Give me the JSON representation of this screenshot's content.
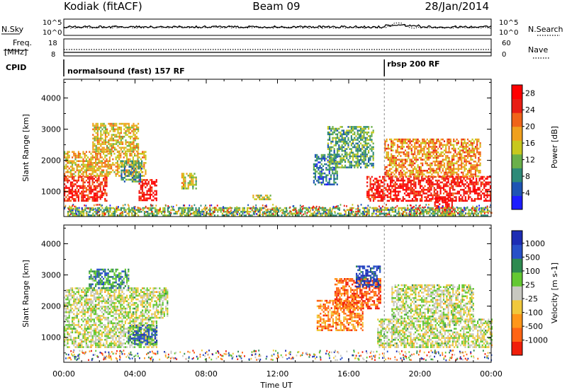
{
  "header": {
    "station": "Kodiak (fitACF)",
    "beam": "Beam 09",
    "date": "28/Jan/2014"
  },
  "top_panels": {
    "nsky_label": "N.Sky",
    "nsearch_label": "N.Search",
    "freq_label_1": "Freq.",
    "freq_label_2": "[MHz]",
    "nave_label": "Nave",
    "cpid_label": "CPID",
    "noise_left_ticks": [
      "10^5",
      "10^0"
    ],
    "noise_right_ticks": [
      "10^5",
      "10^0"
    ],
    "freq_left_ticks": [
      "18",
      "8"
    ],
    "freq_right_ticks": [
      "60",
      "0"
    ],
    "cpid_segments": [
      {
        "label": "normalsound (fast) 157 RF",
        "start_hour": 0
      },
      {
        "label": "rbsp 200 RF",
        "start_hour": 18
      }
    ]
  },
  "chart_data": [
    {
      "type": "heatmap",
      "name": "Power",
      "ylabel": "Slant Range [km]",
      "yticks": [
        "1000",
        "2000",
        "3000",
        "4000"
      ],
      "ylim": [
        200,
        4600
      ],
      "xlim": [
        0,
        24
      ],
      "colorbar": {
        "label": "Power [dB]",
        "ticks": [
          "4",
          "8",
          "12",
          "16",
          "20",
          "24",
          "28"
        ],
        "range": [
          0,
          30
        ],
        "colors": [
          "#1d1dff",
          "#1e54b4",
          "#2e8a78",
          "#6ab04a",
          "#c8c81e",
          "#f0a01e",
          "#f06419",
          "#e81e14",
          "#ff0000"
        ]
      },
      "regions": [
        {
          "t0": 0.0,
          "t1": 2.4,
          "r0": 700,
          "r1": 1500,
          "level": 0.85
        },
        {
          "t0": 0.0,
          "t1": 4.6,
          "r0": 1500,
          "r1": 2300,
          "level": 0.6
        },
        {
          "t0": 1.6,
          "t1": 4.2,
          "r0": 2300,
          "r1": 3200,
          "level": 0.55
        },
        {
          "t0": 4.2,
          "t1": 5.2,
          "r0": 700,
          "r1": 1400,
          "level": 0.9
        },
        {
          "t0": 3.2,
          "t1": 4.4,
          "r0": 1300,
          "r1": 2000,
          "level": 0.3
        },
        {
          "t0": 14.0,
          "t1": 15.4,
          "r0": 1200,
          "r1": 2200,
          "level": 0.25
        },
        {
          "t0": 14.8,
          "t1": 17.4,
          "r0": 1800,
          "r1": 3100,
          "level": 0.35
        },
        {
          "t0": 17.0,
          "t1": 24.0,
          "r0": 700,
          "r1": 1500,
          "level": 0.9
        },
        {
          "t0": 18.0,
          "t1": 23.4,
          "r0": 1500,
          "r1": 2700,
          "level": 0.65
        },
        {
          "t0": 20.8,
          "t1": 21.8,
          "r0": 300,
          "r1": 800,
          "level": 0.95
        },
        {
          "t0": 0.2,
          "t1": 23.8,
          "r0": 250,
          "r1": 500,
          "level": 0.4
        },
        {
          "t0": 6.6,
          "t1": 7.4,
          "r0": 1100,
          "r1": 1600,
          "level": 0.5
        },
        {
          "t0": 10.6,
          "t1": 11.6,
          "r0": 750,
          "r1": 900,
          "level": 0.45
        }
      ]
    },
    {
      "type": "heatmap",
      "name": "Velocity",
      "ylabel": "Slant Range [km]",
      "yticks": [
        "1000",
        "2000",
        "3000",
        "4000"
      ],
      "ylim": [
        200,
        4600
      ],
      "xlim": [
        0,
        24
      ],
      "xlabel": "Time UT",
      "xticks": [
        "00:00",
        "04:00",
        "08:00",
        "12:00",
        "16:00",
        "20:00",
        "00:00"
      ],
      "colorbar": {
        "label": "Velocity [m s-1]",
        "ticks": [
          "1000",
          "500",
          "100",
          "25",
          "-25",
          "-100",
          "-500",
          "-1000"
        ],
        "colors": [
          "#1d2db4",
          "#2850c8",
          "#2e8a50",
          "#64c832",
          "#c8c8c0",
          "#f0c83c",
          "#ff9619",
          "#ff6414",
          "#f01e0a"
        ]
      },
      "regions": [
        {
          "t0": 0.0,
          "t1": 5.2,
          "r0": 700,
          "r1": 1600,
          "level": 0.5
        },
        {
          "t0": 0.0,
          "t1": 5.8,
          "r0": 1600,
          "r1": 2600,
          "level": 0.5
        },
        {
          "t0": 3.6,
          "t1": 5.2,
          "r0": 800,
          "r1": 1400,
          "level": 0.25
        },
        {
          "t0": 1.4,
          "t1": 3.6,
          "r0": 2600,
          "r1": 3200,
          "level": 0.3
        },
        {
          "t0": 14.2,
          "t1": 16.8,
          "r0": 1200,
          "r1": 2200,
          "level": 0.75
        },
        {
          "t0": 15.2,
          "t1": 17.8,
          "r0": 1900,
          "r1": 2900,
          "level": 0.85
        },
        {
          "t0": 17.6,
          "t1": 24.0,
          "r0": 700,
          "r1": 1600,
          "level": 0.5
        },
        {
          "t0": 18.4,
          "t1": 23.0,
          "r0": 1600,
          "r1": 2700,
          "level": 0.5
        },
        {
          "t0": 16.4,
          "t1": 17.8,
          "r0": 2600,
          "r1": 3300,
          "level": 0.1
        }
      ]
    }
  ]
}
